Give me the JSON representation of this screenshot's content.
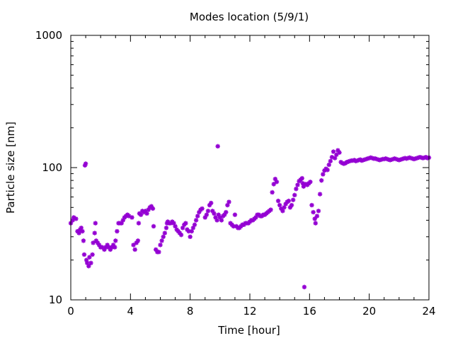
{
  "chart_data": {
    "type": "scatter",
    "title": "Modes location (5/9/1)",
    "xlabel": "Time [hour]",
    "ylabel": "Particle size [nm]",
    "xlim": [
      0,
      24
    ],
    "ylim": [
      10,
      1000
    ],
    "yscale": "log",
    "xticks": [
      0,
      4,
      8,
      12,
      16,
      20,
      24
    ],
    "xtick_labels": [
      "0",
      "4",
      "8",
      "12",
      "16",
      "20",
      "24"
    ],
    "yticks": [
      10,
      100,
      1000
    ],
    "ytick_labels": [
      "10",
      "100",
      "1000"
    ],
    "grid": false,
    "legend": "none",
    "marker": "asterisk",
    "color": "#9400d3",
    "points": [
      [
        0.0,
        38
      ],
      [
        0.13,
        40
      ],
      [
        0.2,
        42
      ],
      [
        0.35,
        41
      ],
      [
        0.45,
        33
      ],
      [
        0.55,
        32
      ],
      [
        0.62,
        34
      ],
      [
        0.7,
        35
      ],
      [
        0.78,
        33
      ],
      [
        0.85,
        28
      ],
      [
        0.9,
        22
      ],
      [
        0.95,
        104
      ],
      [
        1.0,
        107
      ],
      [
        1.05,
        20
      ],
      [
        1.1,
        19
      ],
      [
        1.2,
        18
      ],
      [
        1.25,
        21
      ],
      [
        1.35,
        19
      ],
      [
        1.45,
        22
      ],
      [
        1.5,
        27
      ],
      [
        1.6,
        32
      ],
      [
        1.65,
        38
      ],
      [
        1.7,
        28
      ],
      [
        1.8,
        27
      ],
      [
        1.9,
        26
      ],
      [
        2.0,
        25
      ],
      [
        2.1,
        25
      ],
      [
        2.25,
        24
      ],
      [
        2.35,
        25
      ],
      [
        2.45,
        26
      ],
      [
        2.55,
        25
      ],
      [
        2.65,
        24
      ],
      [
        2.75,
        25
      ],
      [
        2.85,
        26
      ],
      [
        2.95,
        25
      ],
      [
        3.0,
        28
      ],
      [
        3.1,
        33
      ],
      [
        3.2,
        38
      ],
      [
        3.3,
        38
      ],
      [
        3.4,
        38
      ],
      [
        3.5,
        40
      ],
      [
        3.6,
        42
      ],
      [
        3.7,
        43
      ],
      [
        3.8,
        44
      ],
      [
        3.9,
        43
      ],
      [
        4.1,
        42
      ],
      [
        4.2,
        26
      ],
      [
        4.3,
        24
      ],
      [
        4.4,
        27
      ],
      [
        4.5,
        28
      ],
      [
        4.55,
        38
      ],
      [
        4.6,
        45
      ],
      [
        4.7,
        44
      ],
      [
        4.8,
        47
      ],
      [
        4.9,
        46
      ],
      [
        5.0,
        47
      ],
      [
        5.1,
        45
      ],
      [
        5.2,
        48
      ],
      [
        5.3,
        50
      ],
      [
        5.4,
        51
      ],
      [
        5.5,
        49
      ],
      [
        5.55,
        36
      ],
      [
        5.7,
        24
      ],
      [
        5.8,
        23
      ],
      [
        5.9,
        23
      ],
      [
        6.0,
        26
      ],
      [
        6.1,
        28
      ],
      [
        6.2,
        30
      ],
      [
        6.3,
        32
      ],
      [
        6.4,
        35
      ],
      [
        6.45,
        38
      ],
      [
        6.5,
        39
      ],
      [
        6.6,
        38
      ],
      [
        6.7,
        38
      ],
      [
        6.8,
        39
      ],
      [
        6.9,
        38
      ],
      [
        7.0,
        36
      ],
      [
        7.1,
        34
      ],
      [
        7.2,
        33
      ],
      [
        7.3,
        32
      ],
      [
        7.4,
        31
      ],
      [
        7.5,
        35
      ],
      [
        7.6,
        37
      ],
      [
        7.7,
        38
      ],
      [
        7.8,
        34
      ],
      [
        7.9,
        33
      ],
      [
        8.0,
        30
      ],
      [
        8.1,
        33
      ],
      [
        8.2,
        35
      ],
      [
        8.3,
        37
      ],
      [
        8.4,
        40
      ],
      [
        8.5,
        43
      ],
      [
        8.6,
        46
      ],
      [
        8.7,
        48
      ],
      [
        8.8,
        49
      ],
      [
        9.0,
        42
      ],
      [
        9.1,
        44
      ],
      [
        9.2,
        47
      ],
      [
        9.3,
        52
      ],
      [
        9.4,
        54
      ],
      [
        9.5,
        47
      ],
      [
        9.6,
        45
      ],
      [
        9.7,
        42
      ],
      [
        9.8,
        40
      ],
      [
        9.85,
        145
      ],
      [
        9.9,
        44
      ],
      [
        10.0,
        42
      ],
      [
        10.1,
        40
      ],
      [
        10.2,
        43
      ],
      [
        10.3,
        44
      ],
      [
        10.4,
        46
      ],
      [
        10.5,
        52
      ],
      [
        10.6,
        55
      ],
      [
        10.7,
        38
      ],
      [
        10.8,
        37
      ],
      [
        10.9,
        36
      ],
      [
        11.0,
        44
      ],
      [
        11.1,
        36
      ],
      [
        11.2,
        35
      ],
      [
        11.3,
        35
      ],
      [
        11.4,
        36
      ],
      [
        11.5,
        37
      ],
      [
        11.6,
        37
      ],
      [
        11.7,
        38
      ],
      [
        11.8,
        38
      ],
      [
        11.9,
        38
      ],
      [
        12.0,
        39
      ],
      [
        12.1,
        40
      ],
      [
        12.2,
        40
      ],
      [
        12.3,
        41
      ],
      [
        12.4,
        42
      ],
      [
        12.5,
        44
      ],
      [
        12.6,
        44
      ],
      [
        12.7,
        43
      ],
      [
        12.8,
        43
      ],
      [
        12.9,
        44
      ],
      [
        13.0,
        44
      ],
      [
        13.1,
        45
      ],
      [
        13.2,
        46
      ],
      [
        13.3,
        47
      ],
      [
        13.4,
        48
      ],
      [
        13.5,
        65
      ],
      [
        13.6,
        75
      ],
      [
        13.7,
        82
      ],
      [
        13.8,
        78
      ],
      [
        13.9,
        56
      ],
      [
        14.0,
        52
      ],
      [
        14.1,
        49
      ],
      [
        14.2,
        47
      ],
      [
        14.3,
        50
      ],
      [
        14.4,
        53
      ],
      [
        14.5,
        55
      ],
      [
        14.6,
        56
      ],
      [
        14.7,
        50
      ],
      [
        14.8,
        52
      ],
      [
        14.9,
        57
      ],
      [
        15.0,
        62
      ],
      [
        15.1,
        69
      ],
      [
        15.2,
        74
      ],
      [
        15.3,
        79
      ],
      [
        15.4,
        81
      ],
      [
        15.5,
        83
      ],
      [
        15.55,
        76
      ],
      [
        15.6,
        72
      ],
      [
        15.65,
        12.5
      ],
      [
        15.75,
        75
      ],
      [
        15.85,
        74
      ],
      [
        15.95,
        76
      ],
      [
        16.05,
        78
      ],
      [
        16.15,
        52
      ],
      [
        16.25,
        46
      ],
      [
        16.35,
        41
      ],
      [
        16.4,
        38
      ],
      [
        16.5,
        43
      ],
      [
        16.6,
        47
      ],
      [
        16.7,
        63
      ],
      [
        16.8,
        80
      ],
      [
        16.9,
        89
      ],
      [
        17.0,
        95
      ],
      [
        17.1,
        98
      ],
      [
        17.2,
        96
      ],
      [
        17.3,
        105
      ],
      [
        17.4,
        112
      ],
      [
        17.5,
        120
      ],
      [
        17.6,
        132
      ],
      [
        17.7,
        118
      ],
      [
        17.8,
        125
      ],
      [
        17.9,
        135
      ],
      [
        18.0,
        130
      ],
      [
        18.1,
        110
      ],
      [
        18.2,
        108
      ],
      [
        18.3,
        107
      ],
      [
        18.4,
        108
      ],
      [
        18.5,
        110
      ],
      [
        18.6,
        111
      ],
      [
        18.7,
        112
      ],
      [
        18.8,
        113
      ],
      [
        18.9,
        113
      ],
      [
        19.0,
        114
      ],
      [
        19.1,
        112
      ],
      [
        19.2,
        113
      ],
      [
        19.3,
        114
      ],
      [
        19.4,
        115
      ],
      [
        19.5,
        113
      ],
      [
        19.6,
        114
      ],
      [
        19.7,
        115
      ],
      [
        19.8,
        116
      ],
      [
        19.9,
        117
      ],
      [
        20.0,
        118
      ],
      [
        20.1,
        119
      ],
      [
        20.2,
        118
      ],
      [
        20.3,
        117
      ],
      [
        20.4,
        117
      ],
      [
        20.5,
        116
      ],
      [
        20.6,
        115
      ],
      [
        20.7,
        114
      ],
      [
        20.8,
        115
      ],
      [
        20.9,
        116
      ],
      [
        21.0,
        116
      ],
      [
        21.1,
        117
      ],
      [
        21.2,
        116
      ],
      [
        21.3,
        115
      ],
      [
        21.4,
        114
      ],
      [
        21.5,
        115
      ],
      [
        21.6,
        116
      ],
      [
        21.7,
        117
      ],
      [
        21.8,
        116
      ],
      [
        21.9,
        115
      ],
      [
        22.0,
        114
      ],
      [
        22.1,
        115
      ],
      [
        22.2,
        116
      ],
      [
        22.3,
        117
      ],
      [
        22.4,
        118
      ],
      [
        22.5,
        117
      ],
      [
        22.6,
        118
      ],
      [
        22.7,
        119
      ],
      [
        22.8,
        118
      ],
      [
        22.9,
        117
      ],
      [
        23.0,
        116
      ],
      [
        23.1,
        117
      ],
      [
        23.2,
        118
      ],
      [
        23.3,
        119
      ],
      [
        23.4,
        120
      ],
      [
        23.5,
        119
      ],
      [
        23.6,
        118
      ],
      [
        23.7,
        119
      ],
      [
        23.8,
        120
      ],
      [
        23.9,
        118
      ],
      [
        24.0,
        119
      ]
    ]
  }
}
